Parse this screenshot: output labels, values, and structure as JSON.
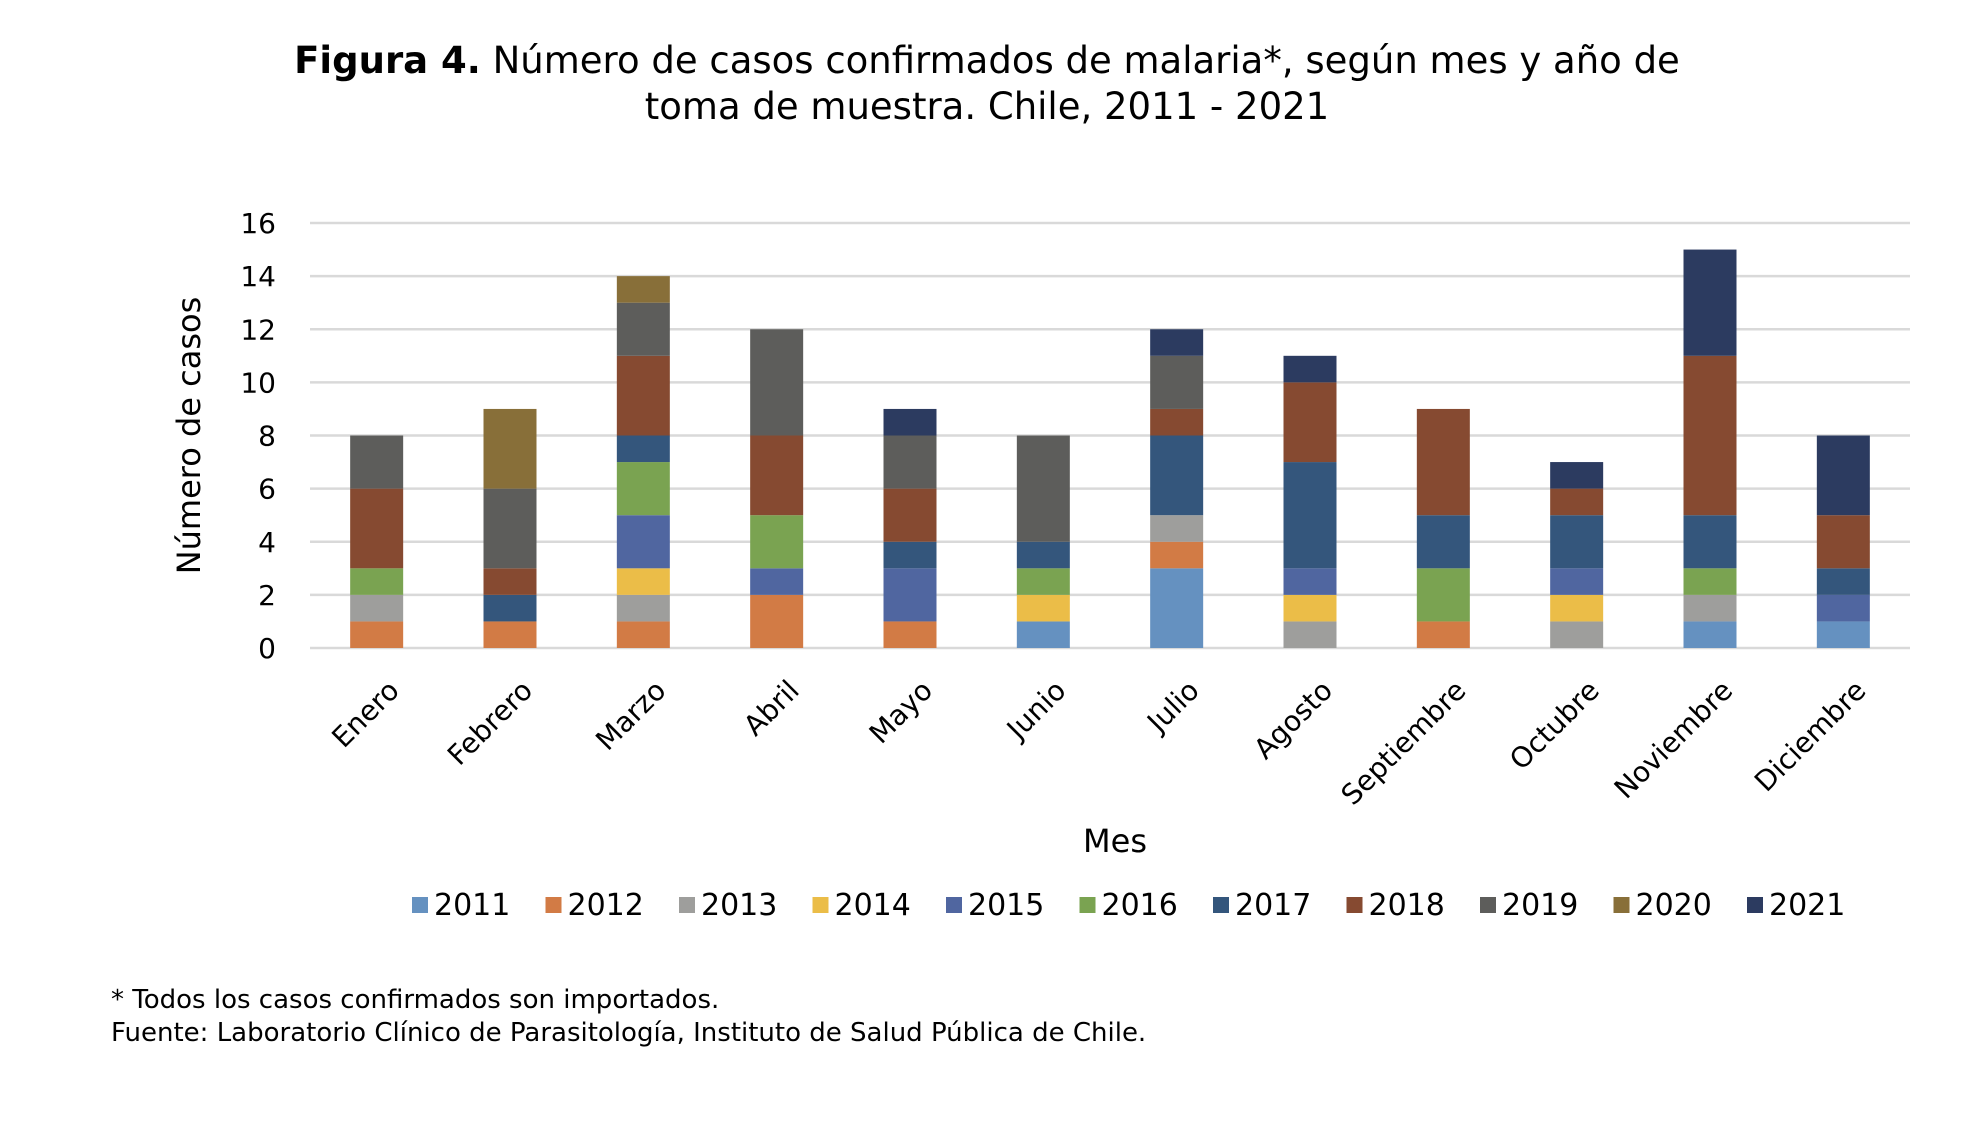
{
  "chart_data": {
    "type": "bar",
    "stacked": true,
    "title_bold": "Figura 4.",
    "title_line1": " Número de casos confirmados de malaria*, según mes y año de",
    "title_line2": "toma de muestra. Chile, 2011 - 2021",
    "xlabel": "Mes",
    "ylabel": "Número de casos",
    "ylim": [
      0,
      16
    ],
    "yticks": [
      0,
      2,
      4,
      6,
      8,
      10,
      12,
      14,
      16
    ],
    "grid": true,
    "legend_position": "bottom",
    "categories": [
      "Enero",
      "Febrero",
      "Marzo",
      "Abril",
      "Mayo",
      "Junio",
      "Julio",
      "Agosto",
      "Septiembre",
      "Octubre",
      "Noviembre",
      "Diciembre"
    ],
    "series": [
      {
        "name": "2011",
        "color": "#6591c0",
        "values": [
          0,
          0,
          0,
          0,
          0,
          1,
          3,
          0,
          0,
          0,
          1,
          1
        ]
      },
      {
        "name": "2012",
        "color": "#d27b45",
        "values": [
          1,
          1,
          1,
          2,
          1,
          0,
          1,
          0,
          1,
          0,
          0,
          0
        ]
      },
      {
        "name": "2013",
        "color": "#9e9e9c",
        "values": [
          1,
          0,
          1,
          0,
          0,
          0,
          1,
          1,
          0,
          1,
          1,
          0
        ]
      },
      {
        "name": "2014",
        "color": "#ebbd48",
        "values": [
          0,
          0,
          1,
          0,
          0,
          1,
          0,
          1,
          0,
          1,
          0,
          0
        ]
      },
      {
        "name": "2015",
        "color": "#5066a0",
        "values": [
          0,
          0,
          2,
          1,
          2,
          0,
          0,
          1,
          0,
          1,
          0,
          1
        ]
      },
      {
        "name": "2016",
        "color": "#7aa351",
        "values": [
          1,
          0,
          2,
          2,
          0,
          1,
          0,
          0,
          2,
          0,
          1,
          0
        ]
      },
      {
        "name": "2017",
        "color": "#34567c",
        "values": [
          0,
          1,
          1,
          0,
          1,
          1,
          3,
          4,
          2,
          2,
          2,
          1
        ]
      },
      {
        "name": "2018",
        "color": "#864a31",
        "values": [
          3,
          1,
          3,
          3,
          2,
          0,
          1,
          3,
          4,
          1,
          6,
          2
        ]
      },
      {
        "name": "2019",
        "color": "#5d5d5b",
        "values": [
          2,
          3,
          2,
          4,
          2,
          4,
          2,
          0,
          0,
          0,
          0,
          0
        ]
      },
      {
        "name": "2020",
        "color": "#886f39",
        "values": [
          0,
          3,
          1,
          0,
          0,
          0,
          0,
          0,
          0,
          0,
          0,
          0
        ]
      },
      {
        "name": "2021",
        "color": "#2c3b60",
        "values": [
          0,
          0,
          0,
          0,
          1,
          0,
          1,
          1,
          0,
          1,
          4,
          3
        ]
      }
    ]
  },
  "notes": {
    "line1": "* Todos los casos confirmados son importados.",
    "line2": "Fuente: Laboratorio Clínico de Parasitología, Instituto de Salud Pública de Chile."
  }
}
